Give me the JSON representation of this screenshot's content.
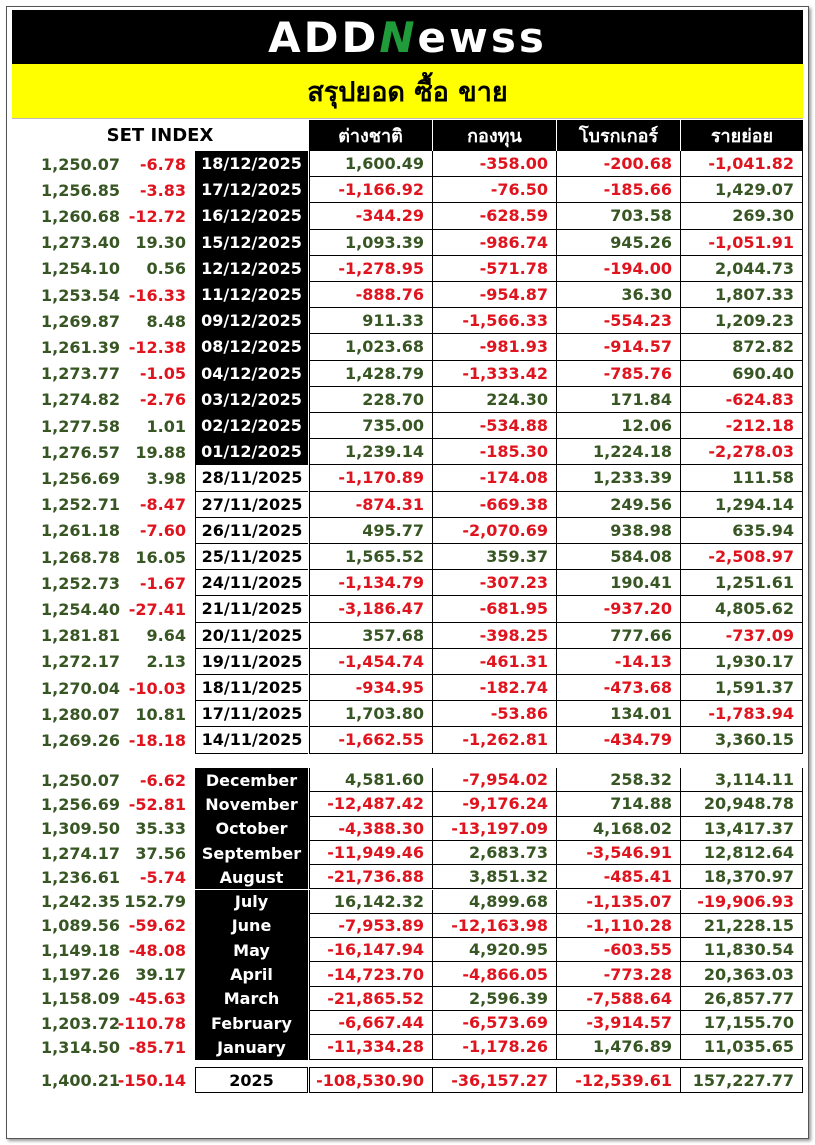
{
  "logo": {
    "prefix": "ADD",
    "n": "N",
    "suffix": "ewss"
  },
  "title": "สรุปยอด ซื้อ ขาย",
  "headers": {
    "set_index": "SET INDEX",
    "foreign": "ต่างชาติ",
    "fund": "กองทุน",
    "broker": "โบรกเกอร์",
    "retail": "รายย่อย"
  },
  "daily": [
    {
      "index": "1,250.07",
      "change": "-6.78",
      "date": "18/12/2025",
      "foreign": "1,600.49",
      "fund": "-358.00",
      "broker": "-200.68",
      "retail": "-1,041.82"
    },
    {
      "index": "1,256.85",
      "change": "-3.83",
      "date": "17/12/2025",
      "foreign": "-1,166.92",
      "fund": "-76.50",
      "broker": "-185.66",
      "retail": "1,429.07"
    },
    {
      "index": "1,260.68",
      "change": "-12.72",
      "date": "16/12/2025",
      "foreign": "-344.29",
      "fund": "-628.59",
      "broker": "703.58",
      "retail": "269.30"
    },
    {
      "index": "1,273.40",
      "change": "19.30",
      "date": "15/12/2025",
      "foreign": "1,093.39",
      "fund": "-986.74",
      "broker": "945.26",
      "retail": "-1,051.91"
    },
    {
      "index": "1,254.10",
      "change": "0.56",
      "date": "12/12/2025",
      "foreign": "-1,278.95",
      "fund": "-571.78",
      "broker": "-194.00",
      "retail": "2,044.73"
    },
    {
      "index": "1,253.54",
      "change": "-16.33",
      "date": "11/12/2025",
      "foreign": "-888.76",
      "fund": "-954.87",
      "broker": "36.30",
      "retail": "1,807.33"
    },
    {
      "index": "1,269.87",
      "change": "8.48",
      "date": "09/12/2025",
      "foreign": "911.33",
      "fund": "-1,566.33",
      "broker": "-554.23",
      "retail": "1,209.23"
    },
    {
      "index": "1,261.39",
      "change": "-12.38",
      "date": "08/12/2025",
      "foreign": "1,023.68",
      "fund": "-981.93",
      "broker": "-914.57",
      "retail": "872.82"
    },
    {
      "index": "1,273.77",
      "change": "-1.05",
      "date": "04/12/2025",
      "foreign": "1,428.79",
      "fund": "-1,333.42",
      "broker": "-785.76",
      "retail": "690.40"
    },
    {
      "index": "1,274.82",
      "change": "-2.76",
      "date": "03/12/2025",
      "foreign": "228.70",
      "fund": "224.30",
      "broker": "171.84",
      "retail": "-624.83"
    },
    {
      "index": "1,277.58",
      "change": "1.01",
      "date": "02/12/2025",
      "foreign": "735.00",
      "fund": "-534.88",
      "broker": "12.06",
      "retail": "-212.18"
    },
    {
      "index": "1,276.57",
      "change": "19.88",
      "date": "01/12/2025",
      "foreign": "1,239.14",
      "fund": "-185.30",
      "broker": "1,224.18",
      "retail": "-2,278.03"
    },
    {
      "index": "1,256.69",
      "change": "3.98",
      "date": "28/11/2025",
      "foreign": "-1,170.89",
      "fund": "-174.08",
      "broker": "1,233.39",
      "retail": "111.58"
    },
    {
      "index": "1,252.71",
      "change": "-8.47",
      "date": "27/11/2025",
      "foreign": "-874.31",
      "fund": "-669.38",
      "broker": "249.56",
      "retail": "1,294.14"
    },
    {
      "index": "1,261.18",
      "change": "-7.60",
      "date": "26/11/2025",
      "foreign": "495.77",
      "fund": "-2,070.69",
      "broker": "938.98",
      "retail": "635.94"
    },
    {
      "index": "1,268.78",
      "change": "16.05",
      "date": "25/11/2025",
      "foreign": "1,565.52",
      "fund": "359.37",
      "broker": "584.08",
      "retail": "-2,508.97"
    },
    {
      "index": "1,252.73",
      "change": "-1.67",
      "date": "24/11/2025",
      "foreign": "-1,134.79",
      "fund": "-307.23",
      "broker": "190.41",
      "retail": "1,251.61"
    },
    {
      "index": "1,254.40",
      "change": "-27.41",
      "date": "21/11/2025",
      "foreign": "-3,186.47",
      "fund": "-681.95",
      "broker": "-937.20",
      "retail": "4,805.62"
    },
    {
      "index": "1,281.81",
      "change": "9.64",
      "date": "20/11/2025",
      "foreign": "357.68",
      "fund": "-398.25",
      "broker": "777.66",
      "retail": "-737.09"
    },
    {
      "index": "1,272.17",
      "change": "2.13",
      "date": "19/11/2025",
      "foreign": "-1,454.74",
      "fund": "-461.31",
      "broker": "-14.13",
      "retail": "1,930.17"
    },
    {
      "index": "1,270.04",
      "change": "-10.03",
      "date": "18/11/2025",
      "foreign": "-934.95",
      "fund": "-182.74",
      "broker": "-473.68",
      "retail": "1,591.37"
    },
    {
      "index": "1,280.07",
      "change": "10.81",
      "date": "17/11/2025",
      "foreign": "1,703.80",
      "fund": "-53.86",
      "broker": "134.01",
      "retail": "-1,783.94"
    },
    {
      "index": "1,269.26",
      "change": "-18.18",
      "date": "14/11/2025",
      "foreign": "-1,662.55",
      "fund": "-1,262.81",
      "broker": "-434.79",
      "retail": "3,360.15"
    }
  ],
  "monthly": [
    {
      "index": "1,250.07",
      "change": "-6.62",
      "date": "December",
      "foreign": "4,581.60",
      "fund": "-7,954.02",
      "broker": "258.32",
      "retail": "3,114.11"
    },
    {
      "index": "1,256.69",
      "change": "-52.81",
      "date": "November",
      "foreign": "-12,487.42",
      "fund": "-9,176.24",
      "broker": "714.88",
      "retail": "20,948.78"
    },
    {
      "index": "1,309.50",
      "change": "35.33",
      "date": "October",
      "foreign": "-4,388.30",
      "fund": "-13,197.09",
      "broker": "4,168.02",
      "retail": "13,417.37"
    },
    {
      "index": "1,274.17",
      "change": "37.56",
      "date": "September",
      "foreign": "-11,949.46",
      "fund": "2,683.73",
      "broker": "-3,546.91",
      "retail": "12,812.64"
    },
    {
      "index": "1,236.61",
      "change": "-5.74",
      "date": "August",
      "foreign": "-21,736.88",
      "fund": "3,851.32",
      "broker": "-485.41",
      "retail": "18,370.97"
    },
    {
      "index": "1,242.35",
      "change": "152.79",
      "date": "July",
      "foreign": "16,142.32",
      "fund": "4,899.68",
      "broker": "-1,135.07",
      "retail": "-19,906.93"
    },
    {
      "index": "1,089.56",
      "change": "-59.62",
      "date": "June",
      "foreign": "-7,953.89",
      "fund": "-12,163.98",
      "broker": "-1,110.28",
      "retail": "21,228.15"
    },
    {
      "index": "1,149.18",
      "change": "-48.08",
      "date": "May",
      "foreign": "-16,147.94",
      "fund": "4,920.95",
      "broker": "-603.55",
      "retail": "11,830.54"
    },
    {
      "index": "1,197.26",
      "change": "39.17",
      "date": "April",
      "foreign": "-14,723.70",
      "fund": "-4,866.05",
      "broker": "-773.28",
      "retail": "20,363.03"
    },
    {
      "index": "1,158.09",
      "change": "-45.63",
      "date": "March",
      "foreign": "-21,865.52",
      "fund": "2,596.39",
      "broker": "-7,588.64",
      "retail": "26,857.77"
    },
    {
      "index": "1,203.72",
      "change": "-110.78",
      "date": "February",
      "foreign": "-6,667.44",
      "fund": "-6,573.69",
      "broker": "-3,914.57",
      "retail": "17,155.70"
    },
    {
      "index": "1,314.50",
      "change": "-85.71",
      "date": "January",
      "foreign": "-11,334.28",
      "fund": "-1,178.26",
      "broker": "1,476.89",
      "retail": "11,035.65"
    }
  ],
  "total": {
    "index": "1,400.21",
    "change": "-150.14",
    "date": "2025",
    "foreign": "-108,530.90",
    "fund": "-36,157.27",
    "broker": "-12,539.61",
    "retail": "157,227.77"
  },
  "colors": {
    "positive": "#375623",
    "negative": "#e0141e",
    "title_bg": "#ffff00",
    "logo_accent": "#1f9b3a"
  }
}
